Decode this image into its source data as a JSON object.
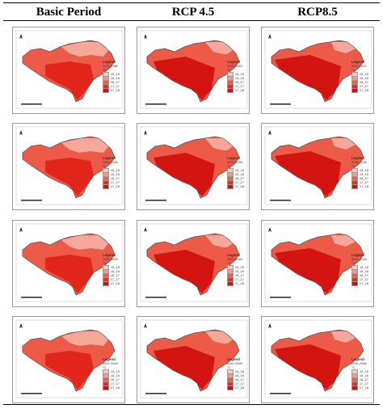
{
  "figure": {
    "columns": [
      {
        "label": "Basic Period"
      },
      {
        "label": "RCP 4.5"
      },
      {
        "label": "RCP8.5"
      }
    ],
    "legend_title": "Legend",
    "legend_unit": "°C",
    "legend_classes": [
      "15_15",
      "15_16",
      "16_17",
      "17_17",
      "17_18"
    ],
    "legend_colors": [
      "#f7c9c0",
      "#f19a8c",
      "#e9604f",
      "#dc3128",
      "#c8120f"
    ],
    "rows": [
      {
        "periods": [
          "1971-1980",
          "2011-2020",
          "2011-2021"
        ]
      },
      {
        "periods": [
          "1981-1990",
          "2021-2030",
          "2021-2030"
        ]
      },
      {
        "periods": [
          "1991-2000",
          "2031-2040",
          "2031-2040"
        ]
      },
      {
        "periods": [
          "2001-2010",
          "2041-2050",
          "2041-2050"
        ]
      }
    ],
    "map_colors": {
      "light": "#f5a79a",
      "mid": "#ee5a48",
      "dark": "#e3261c",
      "deep": "#d41410"
    }
  }
}
